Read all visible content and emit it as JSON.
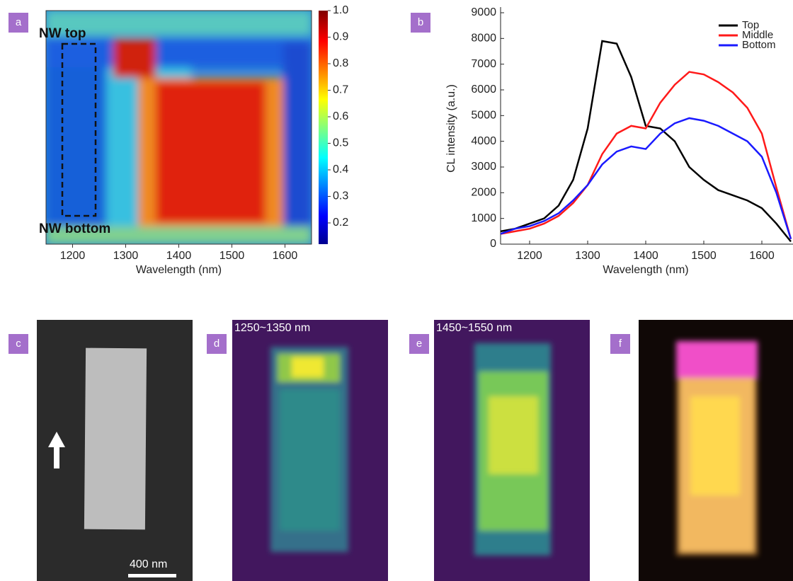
{
  "panel_labels": [
    "a",
    "b",
    "c",
    "d",
    "e",
    "f"
  ],
  "chart_data": [
    {
      "type": "heatmap",
      "xlabel": "Wavelength (nm)",
      "xlim": [
        1150,
        1650
      ],
      "xticks": [
        1200,
        1300,
        1400,
        1500,
        1600
      ],
      "annotations": [
        "NW top",
        "NW bottom"
      ],
      "clim": [
        0.12,
        1.0
      ],
      "cticks": [
        0.2,
        0.3,
        0.4,
        0.5,
        0.6,
        0.7,
        0.8,
        0.9,
        {
          "value": 1.0,
          "label": "1.0"
        }
      ]
    },
    {
      "type": "line",
      "xlabel": "Wavelength (nm)",
      "ylabel": "CL intensity (a.u.)",
      "xlim": [
        1150,
        1650
      ],
      "xticks": [
        1200,
        1300,
        1400,
        1500,
        1600
      ],
      "ylim": [
        0,
        9000
      ],
      "yticks": [
        0,
        1000,
        2000,
        3000,
        4000,
        5000,
        6000,
        7000,
        8000,
        9000
      ],
      "legend": "upper right",
      "x": [
        1150,
        1175,
        1200,
        1225,
        1250,
        1275,
        1300,
        1325,
        1350,
        1375,
        1400,
        1425,
        1450,
        1475,
        1500,
        1525,
        1550,
        1575,
        1600,
        1625,
        1650
      ],
      "series": [
        {
          "name": "Top",
          "color": "#000000",
          "values": [
            500,
            600,
            800,
            1000,
            1500,
            2500,
            4500,
            7900,
            7800,
            6500,
            4600,
            4500,
            4000,
            3000,
            2500,
            2100,
            1900,
            1700,
            1400,
            800,
            100
          ]
        },
        {
          "name": "Middle",
          "color": "#ff1a1a",
          "values": [
            400,
            500,
            600,
            800,
            1100,
            1600,
            2300,
            3500,
            4300,
            4600,
            4500,
            5500,
            6200,
            6700,
            6600,
            6300,
            5900,
            5300,
            4300,
            2200,
            200
          ]
        },
        {
          "name": "Bottom",
          "color": "#1a1aff",
          "values": [
            400,
            600,
            700,
            900,
            1200,
            1700,
            2300,
            3100,
            3600,
            3800,
            3700,
            4300,
            4700,
            4900,
            4800,
            4600,
            4300,
            4000,
            3400,
            2000,
            200
          ]
        }
      ]
    }
  ],
  "images": [
    {
      "caption": "400 nm"
    },
    {
      "caption": "1250~1350 nm"
    },
    {
      "caption": "1450~1550 nm"
    }
  ]
}
